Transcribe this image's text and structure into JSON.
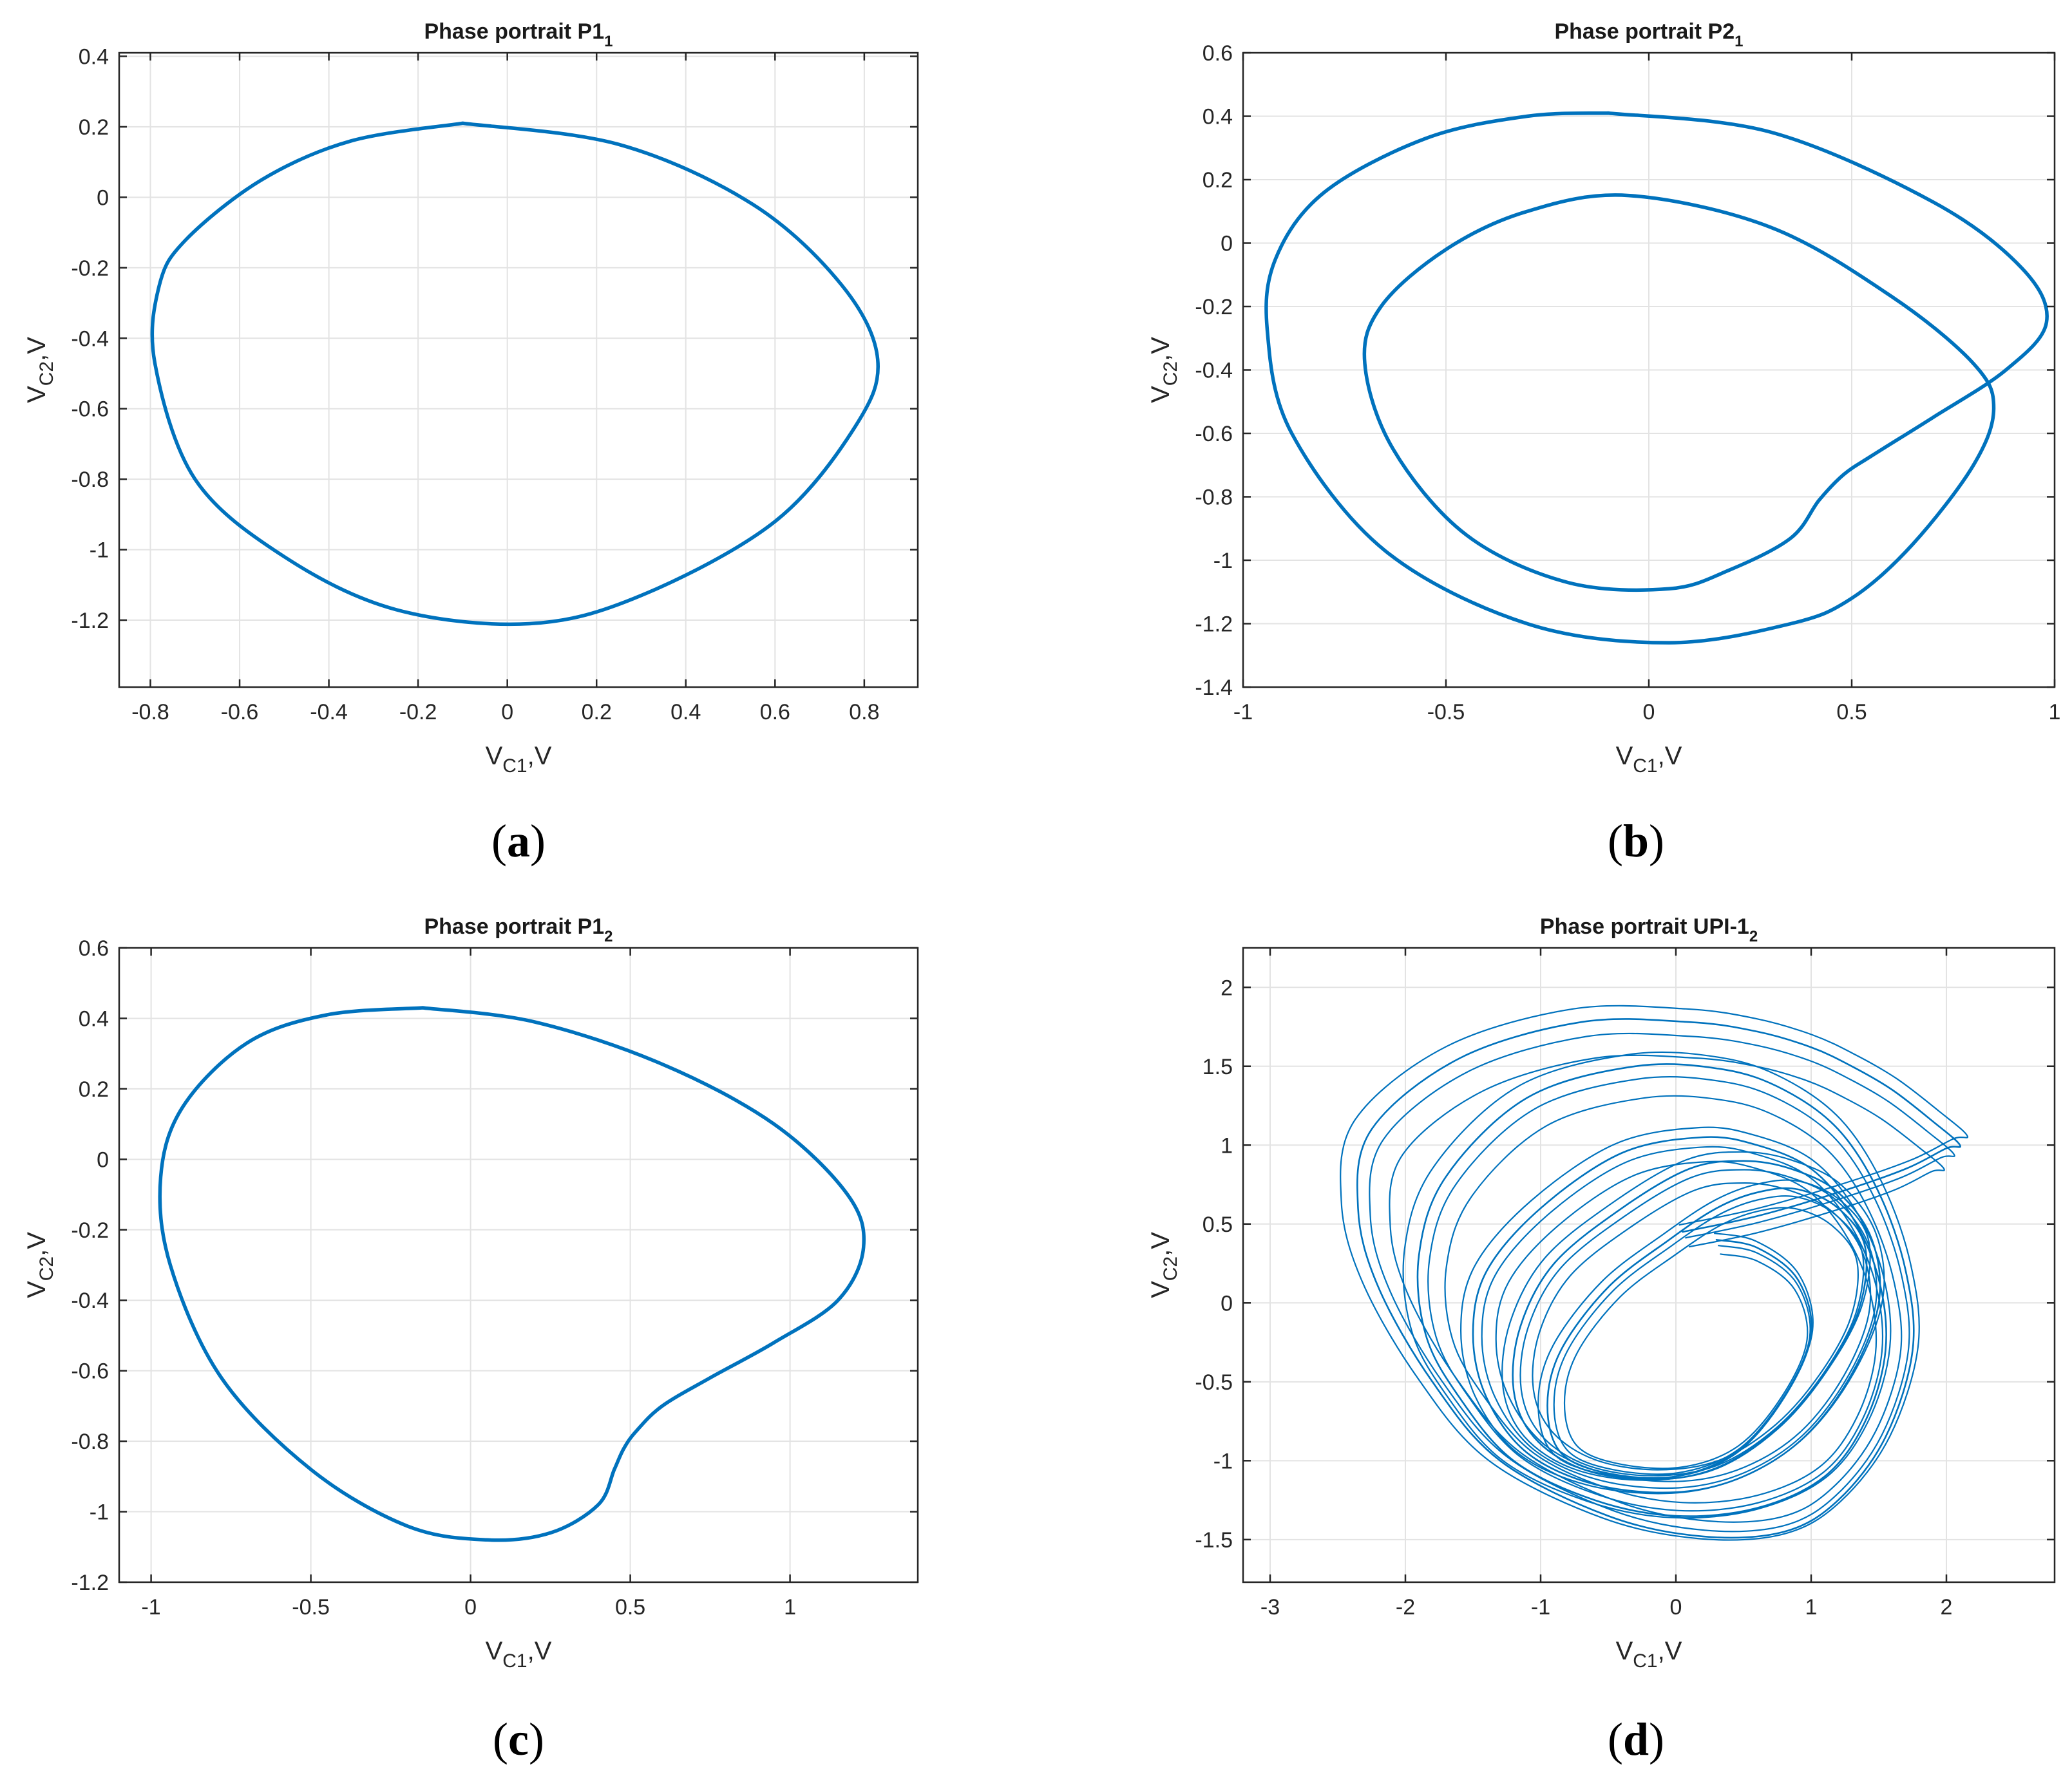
{
  "chart_data": [
    {
      "type": "line",
      "panel": "a",
      "title": "Phase portrait P1",
      "title_sub": "1",
      "xlabel": "V",
      "xlabel_sub": "C1",
      "xlabel_suffix": ",V",
      "ylabel": "V",
      "ylabel_sub": "C2",
      "ylabel_suffix": ",V",
      "xlim": [
        -0.87,
        0.92
      ],
      "ylim": [
        -1.39,
        0.41
      ],
      "xticks": [
        -0.8,
        -0.6,
        -0.4,
        -0.2,
        0,
        0.2,
        0.4,
        0.6,
        0.8
      ],
      "xticklabels": [
        "-0.8",
        "-0.6",
        "-0.4",
        "-0.2",
        "0",
        "0.2",
        "0.4",
        "0.6",
        "0.8"
      ],
      "yticks": [
        -1.2,
        -1,
        -0.8,
        -0.6,
        -0.4,
        -0.2,
        0,
        0.2,
        0.4
      ],
      "yticklabels": [
        "-1.2",
        "-1",
        "-0.8",
        "-0.6",
        "-0.4",
        "-0.2",
        "0",
        "0.2",
        "0.4"
      ],
      "grid": true,
      "series": [
        {
          "name": "orbit",
          "x": [
            -0.1,
            0.25,
            0.55,
            0.75,
            0.83,
            0.78,
            0.6,
            0.3,
            0.05,
            -0.25,
            -0.5,
            -0.7,
            -0.79,
            -0.78,
            -0.72,
            -0.55,
            -0.35,
            -0.1
          ],
          "y": [
            0.21,
            0.15,
            -0.02,
            -0.25,
            -0.46,
            -0.65,
            -0.92,
            -1.13,
            -1.21,
            -1.17,
            -1.02,
            -0.8,
            -0.47,
            -0.25,
            -0.12,
            0.05,
            0.16,
            0.21
          ]
        }
      ]
    },
    {
      "type": "line",
      "panel": "b",
      "title": "Phase portrait P2",
      "title_sub": "1",
      "xlabel": "V",
      "xlabel_sub": "C1",
      "xlabel_suffix": ",V",
      "ylabel": "V",
      "ylabel_sub": "C2",
      "ylabel_suffix": ",V",
      "xlim": [
        -1,
        1
      ],
      "ylim": [
        -1.4,
        0.6
      ],
      "xticks": [
        -1,
        -0.5,
        0,
        0.5,
        1
      ],
      "xticklabels": [
        "-1",
        "-0.5",
        "0",
        "0.5",
        "1"
      ],
      "yticks": [
        -1.4,
        -1.2,
        -1,
        -0.8,
        -0.6,
        -0.4,
        -0.2,
        0,
        0.2,
        0.4,
        0.6
      ],
      "yticklabels": [
        "-1.4",
        "-1.2",
        "-1",
        "-0.8",
        "-0.6",
        "-0.4",
        "-0.2",
        "0",
        "0.2",
        "0.4",
        "0.6"
      ],
      "grid": true,
      "series": [
        {
          "name": "orbit",
          "x": [
            -0.1,
            0.3,
            0.7,
            0.92,
            0.98,
            0.88,
            0.7,
            0.55,
            0.48,
            0.42,
            0.35,
            0.2,
            0.05,
            -0.2,
            -0.45,
            -0.63,
            -0.7,
            -0.66,
            -0.5,
            -0.3,
            -0.05,
            0.3,
            0.6,
            0.8,
            0.85,
            0.8,
            0.65,
            0.5,
            0.35,
            0.05,
            -0.3,
            -0.65,
            -0.88,
            -0.94,
            -0.92,
            -0.8,
            -0.55,
            -0.3,
            -0.1
          ],
          "y": [
            0.41,
            0.35,
            0.13,
            -0.08,
            -0.25,
            -0.4,
            -0.55,
            -0.67,
            -0.73,
            -0.81,
            -0.93,
            -1.03,
            -1.09,
            -1.07,
            -0.92,
            -0.65,
            -0.38,
            -0.2,
            -0.02,
            0.1,
            0.15,
            0.05,
            -0.17,
            -0.38,
            -0.52,
            -0.7,
            -0.95,
            -1.12,
            -1.2,
            -1.26,
            -1.2,
            -0.97,
            -0.6,
            -0.28,
            -0.05,
            0.16,
            0.33,
            0.4,
            0.41
          ]
        }
      ]
    },
    {
      "type": "line",
      "panel": "c",
      "title": "Phase portrait P1",
      "title_sub": "2",
      "xlabel": "V",
      "xlabel_sub": "C1",
      "xlabel_suffix": ",V",
      "ylabel": "V",
      "ylabel_sub": "C2",
      "ylabel_suffix": ",V",
      "xlim": [
        -1.1,
        1.4
      ],
      "ylim": [
        -1.2,
        0.6
      ],
      "xticks": [
        -1,
        -0.5,
        0,
        0.5,
        1
      ],
      "xticklabels": [
        "-1",
        "-0.5",
        "0",
        "0.5",
        "1"
      ],
      "yticks": [
        -1.2,
        -1,
        -0.8,
        -0.6,
        -0.4,
        -0.2,
        0,
        0.2,
        0.4,
        0.6
      ],
      "yticklabels": [
        "-1.2",
        "-1",
        "-0.8",
        "-0.6",
        "-0.4",
        "-0.2",
        "0",
        "0.2",
        "0.4",
        "0.6"
      ],
      "grid": true,
      "series": [
        {
          "name": "orbit",
          "x": [
            -0.15,
            0.2,
            0.6,
            0.95,
            1.18,
            1.23,
            1.15,
            0.95,
            0.75,
            0.6,
            0.52,
            0.48,
            0.45,
            0.4,
            0.25,
            0.05,
            -0.2,
            -0.5,
            -0.78,
            -0.94,
            -0.97,
            -0.9,
            -0.7,
            -0.45,
            -0.15
          ],
          "y": [
            0.43,
            0.39,
            0.27,
            0.1,
            -0.1,
            -0.25,
            -0.4,
            -0.52,
            -0.62,
            -0.7,
            -0.77,
            -0.82,
            -0.88,
            -0.98,
            -1.06,
            -1.08,
            -1.04,
            -0.88,
            -0.62,
            -0.3,
            -0.05,
            0.15,
            0.33,
            0.41,
            0.43
          ]
        }
      ]
    },
    {
      "type": "line",
      "panel": "d",
      "title": "Phase portrait UPI-1",
      "title_sub": "2",
      "xlabel": "V",
      "xlabel_sub": "C1",
      "xlabel_suffix": ",V",
      "ylabel": "V",
      "ylabel_sub": "C2",
      "ylabel_suffix": ",V",
      "xlim": [
        -3.2,
        2.8
      ],
      "ylim": [
        -1.77,
        2.25
      ],
      "xticks": [
        -3,
        -2,
        -1,
        0,
        1,
        2
      ],
      "xticklabels": [
        "-3",
        "-2",
        "-1",
        "0",
        "1",
        "2"
      ],
      "yticks": [
        -1.5,
        -1,
        -0.5,
        0,
        0.5,
        1,
        1.5,
        2
      ],
      "yticklabels": [
        "-1.5",
        "-1",
        "-0.5",
        "0",
        "0.5",
        "1",
        "1.5",
        "2"
      ],
      "grid": true,
      "series": [
        {
          "name": "attractor",
          "x": [
            0.05,
            0.6,
            1.2,
            1.7,
            2.0,
            2.1,
            1.9,
            1.6,
            1.3,
            1.0,
            0.6,
            0.1,
            -0.7,
            -1.6,
            -2.25,
            -2.35,
            -2.2,
            -1.8,
            -1.3,
            -0.5,
            0.2,
            0.8,
            1.2,
            1.55,
            1.75,
            1.7,
            1.5,
            1.2,
            0.8,
            0.35,
            -0.3,
            -1.1,
            -1.7,
            -1.9,
            -1.85,
            -1.6,
            -1.2,
            -0.6,
            0.0,
            0.6,
            1.1,
            1.4,
            1.55,
            1.5,
            1.3,
            1.0,
            0.6,
            0.2,
            -0.4,
            -1.0,
            -1.4,
            -1.5,
            -1.4,
            -1.1,
            -0.6,
            0.0,
            0.5,
            0.95,
            1.3,
            1.5,
            1.45,
            1.2,
            0.85,
            0.5,
            0.1,
            -0.4,
            -0.9,
            -1.15,
            -1.2,
            -1.05,
            -0.7,
            -0.2,
            0.3,
            0.75,
            1.1,
            1.35,
            1.4,
            1.2,
            0.9,
            0.6,
            0.3,
            -0.05,
            -0.5,
            -0.85,
            -0.95,
            -0.85,
            -0.5,
            0.0,
            0.45,
            0.8,
            1.0,
            0.9,
            0.6,
            0.3
          ],
          "y": [
            0.45,
            0.55,
            0.7,
            0.85,
            0.98,
            1.0,
            1.15,
            1.35,
            1.5,
            1.62,
            1.72,
            1.78,
            1.78,
            1.55,
            1.1,
            0.6,
            0.1,
            -0.5,
            -1.0,
            -1.35,
            -1.48,
            -1.45,
            -1.25,
            -0.85,
            -0.3,
            0.2,
            0.7,
            1.1,
            1.35,
            1.48,
            1.5,
            1.3,
            0.8,
            0.3,
            -0.2,
            -0.6,
            -1.0,
            -1.25,
            -1.35,
            -1.3,
            -1.1,
            -0.75,
            -0.3,
            0.15,
            0.55,
            0.85,
            1.0,
            1.05,
            0.95,
            0.6,
            0.2,
            -0.2,
            -0.6,
            -0.95,
            -1.15,
            -1.2,
            -1.1,
            -0.85,
            -0.45,
            0.0,
            0.4,
            0.7,
            0.85,
            0.9,
            0.85,
            0.6,
            0.25,
            -0.15,
            -0.55,
            -0.85,
            -1.05,
            -1.12,
            -1.05,
            -0.8,
            -0.45,
            -0.05,
            0.35,
            0.6,
            0.72,
            0.7,
            0.6,
            0.4,
            0.1,
            -0.3,
            -0.65,
            -0.95,
            -1.08,
            -1.1,
            -0.95,
            -0.6,
            -0.2,
            0.15,
            0.35,
            0.4
          ]
        }
      ]
    }
  ],
  "captions": [
    "a",
    "b",
    "c",
    "d"
  ]
}
